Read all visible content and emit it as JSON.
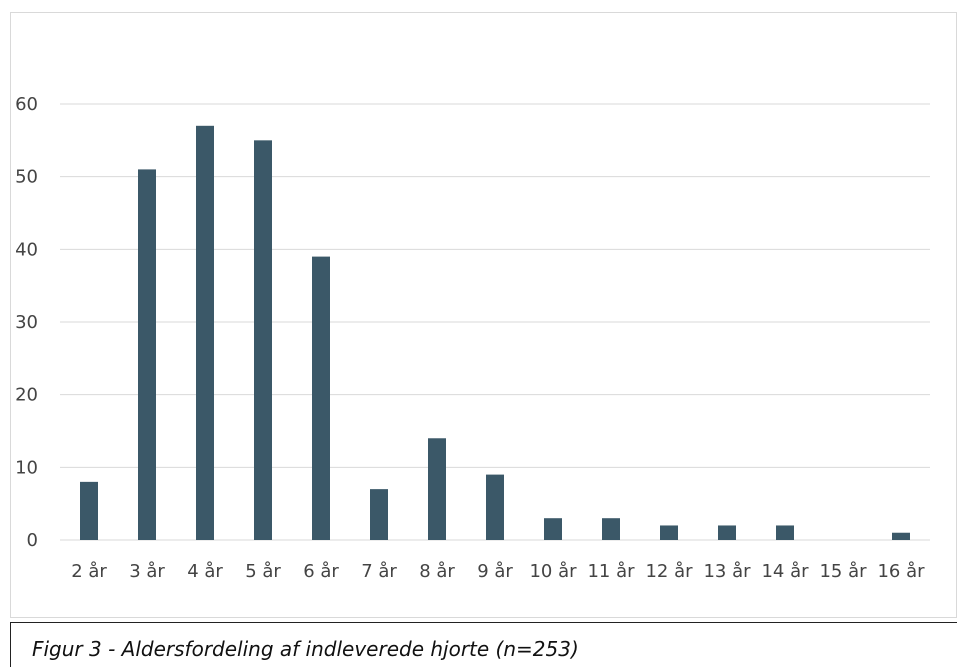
{
  "chart_data": {
    "type": "bar",
    "categories": [
      "2 år",
      "3 år",
      "4 år",
      "5 år",
      "6 år",
      "7 år",
      "8 år",
      "9 år",
      "10 år",
      "11 år",
      "12 år",
      "13 år",
      "14 år",
      "15 år",
      "16 år"
    ],
    "values": [
      8,
      51,
      57,
      55,
      39,
      7,
      14,
      9,
      3,
      3,
      2,
      2,
      2,
      0,
      1
    ],
    "yticks": [
      "0",
      "10",
      "20",
      "30",
      "40",
      "50",
      "60"
    ],
    "ylim": [
      0,
      60
    ],
    "grid": true,
    "bar_color": "#3b5868",
    "grid_color": "#d9d9d9"
  },
  "caption": {
    "text": "Figur 3 - Aldersfordeling af indleverede hjorte (n=253)"
  }
}
